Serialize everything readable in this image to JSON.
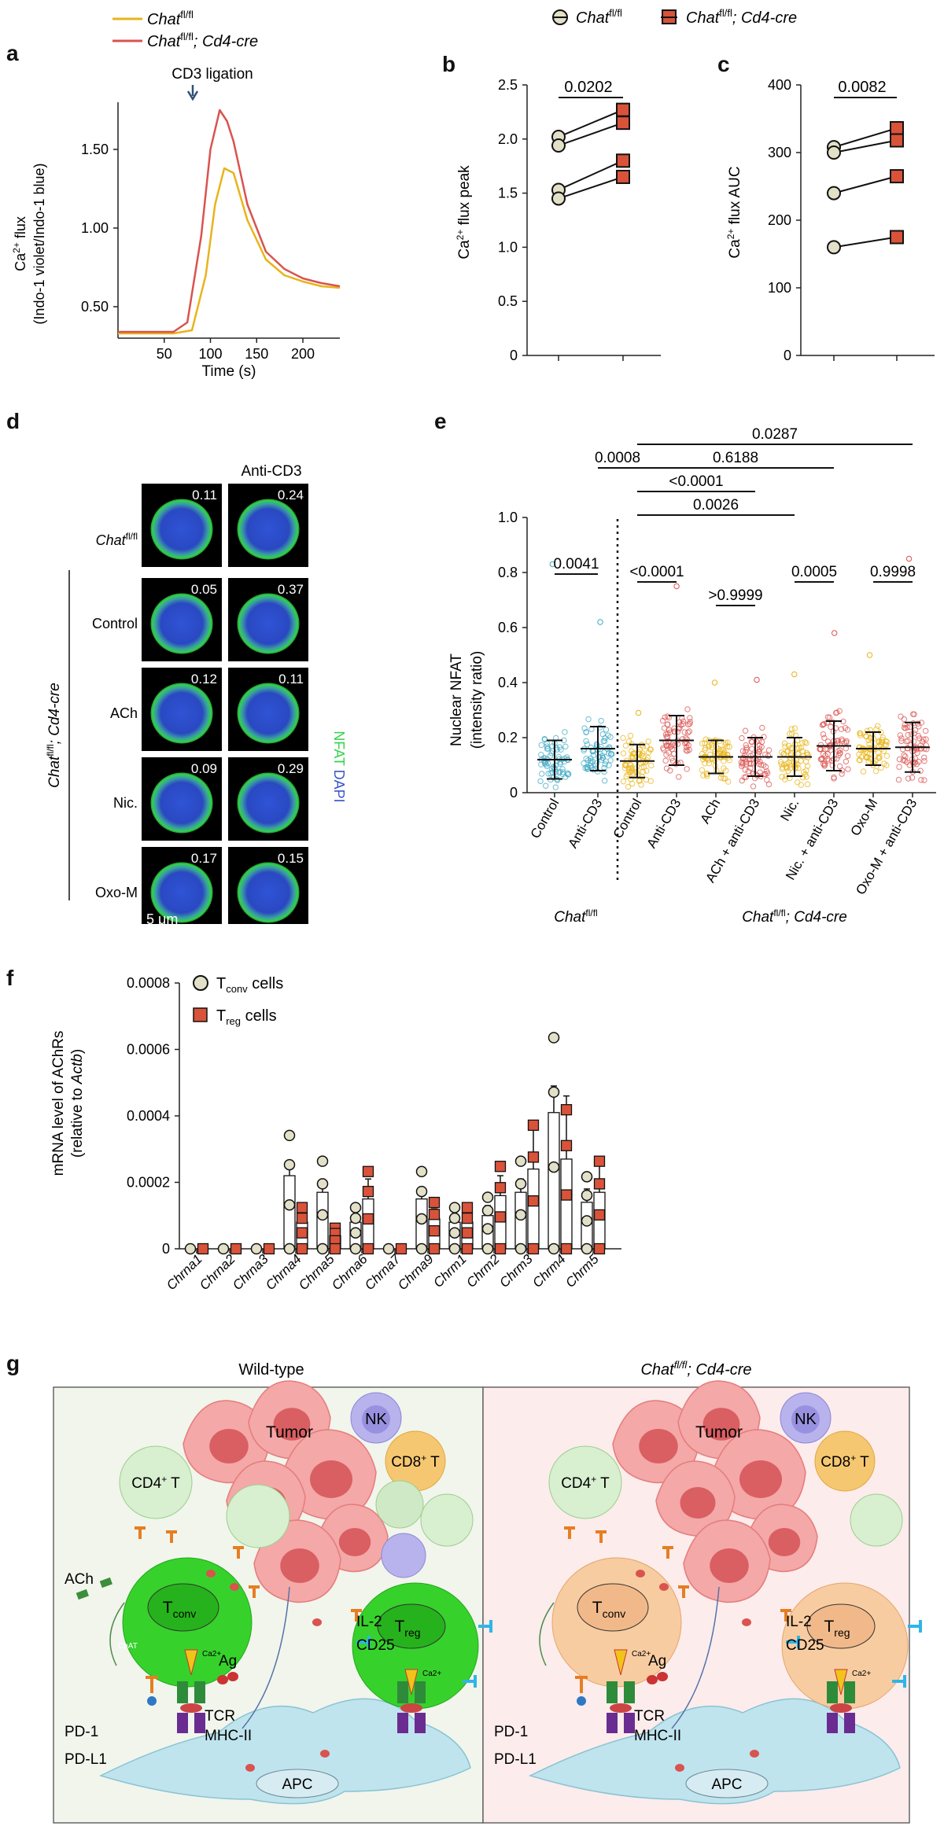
{
  "panel_labels": {
    "a": "a",
    "b": "b",
    "c": "c",
    "d": "d",
    "e": "e",
    "f": "f",
    "g": "g"
  },
  "colors": {
    "control": "#e8b41a",
    "cre": "#d9534f",
    "treg_sq": "#d9533a",
    "tconv_fill": "#e3e0c8",
    "nfat_blue": "#3a55c8",
    "nfat_green": "#35d24c",
    "pie_red": "#d9534f"
  },
  "legend_a": [
    {
      "gene": "Chat",
      "sup": "fl/fl",
      "suffix": ""
    },
    {
      "gene": "Chat",
      "sup": "fl/fl",
      "suffix": "; Cd4-cre"
    }
  ],
  "legend_bc": [
    {
      "gene": "Chat",
      "sup": "fl/fl",
      "suffix": ""
    },
    {
      "gene": "Chat",
      "sup": "fl/fl",
      "suffix": "; Cd4-cre"
    }
  ],
  "panel_a": {
    "annotation": "CD3 ligation",
    "ylabel_line1": "Ca2+ flux",
    "ylabel_line2": "(Indo-1 violet/Indo-1 blue)",
    "xlabel": "Time (s)",
    "yticks": [
      "1.50",
      "1.00",
      "0.50"
    ],
    "xticks": [
      "50",
      "100",
      "150",
      "200"
    ]
  },
  "panel_b": {
    "ylabel": "Ca2+ flux peak",
    "yticks": [
      "2.5",
      "2.0",
      "1.5",
      "1.0",
      "0.5",
      "0"
    ],
    "pvalue": "0.0202"
  },
  "panel_c": {
    "ylabel": "Ca2+ flux AUC",
    "yticks": [
      "400",
      "300",
      "200",
      "100",
      "0"
    ],
    "pvalue": "0.0082"
  },
  "panel_d": {
    "column_header": "Anti-CD3",
    "row_top": {
      "gene": "Chat",
      "sup": "fl/fl"
    },
    "group_label": {
      "gene": "Chat",
      "sup": "fl/fl",
      "suffix": "; Cd4-cre"
    },
    "rows": [
      {
        "label": "",
        "v1": "0.11",
        "v2": "0.24"
      },
      {
        "label": "Control",
        "v1": "0.05",
        "v2": "0.37"
      },
      {
        "label": "ACh",
        "v1": "0.12",
        "v2": "0.11"
      },
      {
        "label": "Nic.",
        "v1": "0.09",
        "v2": "0.29"
      },
      {
        "label": "Oxo-M",
        "v1": "0.17",
        "v2": "0.15"
      }
    ],
    "legend_nfat": "NFAT",
    "legend_dapi": "DAPI",
    "scale": "5 μm"
  },
  "panel_e": {
    "ylabel_line1": "Nuclear NFAT",
    "ylabel_line2": "(intensity ratio)",
    "yticks": [
      "1.0",
      "0.8",
      "0.6",
      "0.4",
      "0.2",
      "0"
    ],
    "categories": [
      "Control",
      "Anti-CD3",
      "Control",
      "Anti-CD3",
      "ACh",
      "ACh + anti-CD3",
      "Nic.",
      "Nic. + anti-CD3",
      "Oxo-M",
      "Oxo-M + anti-CD3"
    ],
    "group1": {
      "gene": "Chat",
      "sup": "fl/fl",
      "suffix": ""
    },
    "group2": {
      "gene": "Chat",
      "sup": "fl/fl",
      "suffix": "; Cd4-cre"
    },
    "pvalues": {
      "p1": "0.0287",
      "p2": "0.6188",
      "p3": "0.0008",
      "p4": "<0.0001",
      "p5": "0.0026",
      "p6": "0.0041",
      "p7": "<0.0001",
      "p8": ">0.9999",
      "p9": "0.0005",
      "p10": "0.9998"
    }
  },
  "chart_data": [
    {
      "type": "line",
      "title": "",
      "xlabel": "Time (s)",
      "ylabel": "Ca2+ flux (Indo-1 violet/Indo-1 blue)",
      "xlim": [
        0,
        240
      ],
      "ylim": [
        0.3,
        1.8
      ],
      "series": [
        {
          "name": "Chat fl/fl",
          "x": [
            0,
            60,
            80,
            95,
            105,
            115,
            125,
            140,
            160,
            180,
            200,
            220,
            240
          ],
          "y": [
            0.33,
            0.33,
            0.35,
            0.7,
            1.15,
            1.38,
            1.35,
            1.05,
            0.8,
            0.7,
            0.66,
            0.63,
            0.62
          ]
        },
        {
          "name": "Chat fl/fl; Cd4-cre",
          "x": [
            0,
            60,
            75,
            90,
            100,
            110,
            118,
            125,
            140,
            160,
            180,
            200,
            220,
            240
          ],
          "y": [
            0.34,
            0.34,
            0.4,
            0.95,
            1.5,
            1.75,
            1.68,
            1.55,
            1.15,
            0.85,
            0.74,
            0.68,
            0.65,
            0.63
          ]
        }
      ]
    },
    {
      "type": "scatter",
      "title": "",
      "ylabel": "Ca2+ flux peak",
      "ylim": [
        0,
        2.5
      ],
      "series": [
        {
          "name": "Chat fl/fl",
          "values": [
            2.02,
            1.94,
            1.53,
            1.45
          ]
        },
        {
          "name": "Chat fl/fl; Cd4-cre",
          "values": [
            2.27,
            2.15,
            1.8,
            1.65
          ]
        }
      ]
    },
    {
      "type": "scatter",
      "title": "",
      "ylabel": "Ca2+ flux AUC",
      "ylim": [
        0,
        400
      ],
      "series": [
        {
          "name": "Chat fl/fl",
          "values": [
            308,
            300,
            240,
            160
          ]
        },
        {
          "name": "Chat fl/fl; Cd4-cre",
          "values": [
            336,
            318,
            265,
            175
          ]
        }
      ]
    },
    {
      "type": "scatter",
      "title": "",
      "ylabel": "Nuclear NFAT (intensity ratio)",
      "ylim": [
        0,
        1.0
      ],
      "categories": [
        "Control",
        "Anti-CD3",
        "Control",
        "Anti-CD3",
        "ACh",
        "ACh + anti-CD3",
        "Nic.",
        "Nic. + anti-CD3",
        "Oxo-M",
        "Oxo-M + anti-CD3"
      ],
      "mean": [
        0.12,
        0.16,
        0.115,
        0.19,
        0.13,
        0.13,
        0.13,
        0.17,
        0.16,
        0.165
      ],
      "sd": [
        0.07,
        0.08,
        0.06,
        0.09,
        0.06,
        0.07,
        0.07,
        0.09,
        0.06,
        0.09
      ],
      "max": [
        0.83,
        0.62,
        0.29,
        0.75,
        0.4,
        0.41,
        0.43,
        0.58,
        0.5,
        0.85
      ]
    },
    {
      "type": "bar",
      "title": "",
      "ylabel": "mRNA level of AChRs (relative to Actb)",
      "ylim": [
        0,
        0.0008
      ],
      "yticks": [
        "0.0008",
        "0.0006",
        "0.0004",
        "0.0002",
        "0"
      ],
      "categories": [
        "Chrna1",
        "Chrna2",
        "Chrna3",
        "Chrna4",
        "Chrna5",
        "Chrna6",
        "Chrna7",
        "Chrna9",
        "Chrm1",
        "Chrm2",
        "Chrm3",
        "Chrm4",
        "Chrm5"
      ],
      "legend_tconv": {
        "main": "T",
        "sub": "conv",
        "rest": " cells"
      },
      "legend_treg": {
        "main": "T",
        "sub": "reg",
        "rest": " cells"
      },
      "series": [
        {
          "name": "Tconv cells",
          "values": [
            0,
            0,
            0,
            0.00022,
            0.00017,
            8e-05,
            0,
            0.00015,
            8e-05,
            0.0001,
            0.00017,
            0.00041,
            0.00014
          ],
          "err": [
            0,
            0,
            0,
            4e-05,
            3e-05,
            2e-05,
            0,
            3e-05,
            2e-05,
            3e-05,
            4e-05,
            8e-05,
            4e-05
          ]
        },
        {
          "name": "Treg cells",
          "values": [
            0,
            0,
            0,
            8e-05,
            4e-05,
            0.00015,
            0,
            9e-05,
            8e-05,
            0.00016,
            0.00024,
            0.00027,
            0.00017
          ],
          "err": [
            0,
            0,
            0,
            3e-05,
            2e-05,
            6e-05,
            0,
            3e-05,
            2e-05,
            6e-05,
            0.00014,
            0.00019,
            0.0001
          ]
        }
      ]
    }
  ],
  "panel_f": {
    "ylabel_line1": "mRNA level of AChRs",
    "ylabel_line2": "(relative to Actb)"
  },
  "panel_g": {
    "wt_title": "Wild-type",
    "ko_title": {
      "gene": "Chat",
      "sup": "fl/fl",
      "suffix": "; Cd4-cre"
    },
    "labels": {
      "nk": "NK",
      "cd8": "CD8",
      "cd8_sup": "+",
      "cd8_t": " T",
      "cd4": "CD4",
      "cd4_sup": "+",
      "cd4_t": " T",
      "tumor": "Tumor",
      "tconv": "T",
      "tconv_sub": "conv",
      "treg": "T",
      "treg_sub": "reg",
      "ach": "ACh",
      "chat": "ChAT",
      "ca": "Ca2+",
      "il2": "IL-2",
      "cd25": "CD25",
      "ag": "Ag",
      "pd1": "PD-1",
      "pdl1": "PD-L1",
      "tcr": "TCR",
      "mhc": "MHC-II",
      "apc": "APC"
    }
  }
}
